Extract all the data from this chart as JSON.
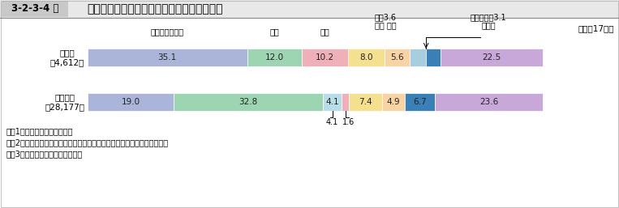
{
  "title_box": "3-2-3-4 図",
  "title_main": "新受刑者中の暴力団加入者等の罪名別構成比",
  "year_label": "（平成17年）",
  "rows": [
    {
      "label": "加入者\n（4,612）",
      "segments": [
        {
          "label": "覚せい剤取締法",
          "value": 35.1,
          "color": "#aab5d9"
        },
        {
          "label": "窃盗",
          "value": 12.0,
          "color": "#9dd4b2"
        },
        {
          "label": "傷害",
          "value": 10.2,
          "color": "#f0b0ba"
        },
        {
          "label": "強盗",
          "value": 8.0,
          "color": "#f5e090"
        },
        {
          "label": "恐喝",
          "value": 5.6,
          "color": "#f8d4a4"
        },
        {
          "label": "詐欺",
          "value": 3.6,
          "color": "#a8cce0"
        },
        {
          "label": "道路交通法",
          "value": 3.1,
          "color": "#3a7fb5"
        },
        {
          "label": "その他",
          "value": 22.5,
          "color": "#c8a8d8"
        }
      ]
    },
    {
      "label": "非加入者\n（28,177）",
      "segments": [
        {
          "label": "覚せい剤取締法",
          "value": 19.0,
          "color": "#aab5d9"
        },
        {
          "label": "窃盗",
          "value": 32.8,
          "color": "#9dd4b2"
        },
        {
          "label": "傷害",
          "value": 4.1,
          "color": "#b8dce8"
        },
        {
          "label": "強盗",
          "value": 1.6,
          "color": "#f0b0ba"
        },
        {
          "label": "恐喝",
          "value": 7.4,
          "color": "#f5e090"
        },
        {
          "label": "詐欺",
          "value": 4.9,
          "color": "#f8d4a4"
        },
        {
          "label": "道路交通法",
          "value": 6.7,
          "color": "#3a7fb5"
        },
        {
          "label": "その他",
          "value": 23.6,
          "color": "#c8a8d8"
        }
      ]
    }
  ],
  "notes": [
    "注　1　矯正統計年報による。",
    "　　2　「その他」は銃刀法違反，殺人，暴力行為等処罰法違反等である。",
    "　　3　（　）内は，実数である。"
  ],
  "background_color": "#ffffff",
  "title_bg": "#d8d8d8",
  "title_area_bg": "#eeeeee"
}
